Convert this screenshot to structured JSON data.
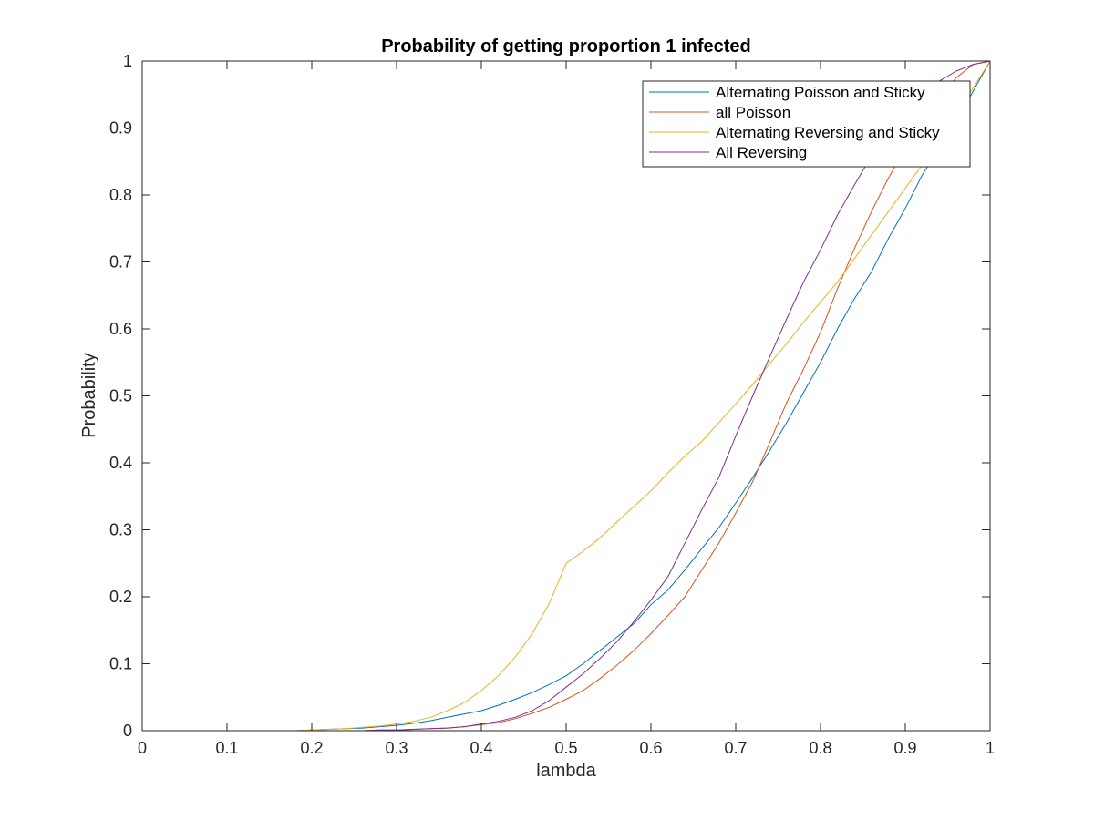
{
  "chart_data": {
    "type": "line",
    "title": "Probability of getting proportion 1 infected",
    "xlabel": "lambda",
    "ylabel": "Probability",
    "xlim": [
      0,
      1
    ],
    "ylim": [
      0,
      1
    ],
    "xticks": [
      0,
      0.1,
      0.2,
      0.3,
      0.4,
      0.5,
      0.6,
      0.7,
      0.8,
      0.9,
      1
    ],
    "xtick_labels": [
      "0",
      "0.1",
      "0.2",
      "0.3",
      "0.4",
      "0.5",
      "0.6",
      "0.7",
      "0.8",
      "0.9",
      "1"
    ],
    "yticks": [
      0,
      0.1,
      0.2,
      0.3,
      0.4,
      0.5,
      0.6,
      0.7,
      0.8,
      0.9,
      1
    ],
    "ytick_labels": [
      "0",
      "0.1",
      "0.2",
      "0.3",
      "0.4",
      "0.5",
      "0.6",
      "0.7",
      "0.8",
      "0.9",
      "1"
    ],
    "grid": false,
    "legend_position": "top-right",
    "x": [
      0,
      0.02,
      0.04,
      0.06,
      0.08,
      0.1,
      0.12,
      0.14,
      0.16,
      0.18,
      0.2,
      0.22,
      0.24,
      0.26,
      0.28,
      0.3,
      0.32,
      0.34,
      0.36,
      0.38,
      0.4,
      0.42,
      0.44,
      0.46,
      0.48,
      0.5,
      0.52,
      0.54,
      0.56,
      0.58,
      0.6,
      0.62,
      0.64,
      0.66,
      0.68,
      0.7,
      0.72,
      0.74,
      0.76,
      0.78,
      0.8,
      0.82,
      0.84,
      0.86,
      0.88,
      0.9,
      0.92,
      0.94,
      0.96,
      0.98,
      1
    ],
    "series": [
      {
        "name": "Alternating Poisson and Sticky",
        "color": "#0072BD",
        "values": [
          0,
          0,
          0,
          0,
          0,
          0,
          0,
          0,
          0,
          0,
          0.001,
          0.002,
          0.003,
          0.004,
          0.006,
          0.008,
          0.011,
          0.015,
          0.02,
          0.025,
          0.03,
          0.038,
          0.047,
          0.057,
          0.069,
          0.082,
          0.1,
          0.12,
          0.14,
          0.16,
          0.188,
          0.21,
          0.24,
          0.272,
          0.303,
          0.34,
          0.378,
          0.418,
          0.46,
          0.505,
          0.55,
          0.6,
          0.645,
          0.685,
          0.735,
          0.78,
          0.83,
          0.87,
          0.91,
          0.955,
          1
        ]
      },
      {
        "name": "all Poisson",
        "color": "#D95319",
        "values": [
          0,
          0,
          0,
          0,
          0,
          0,
          0,
          0,
          0,
          0,
          0,
          0,
          0,
          0,
          0.001,
          0.001,
          0.002,
          0.003,
          0.004,
          0.006,
          0.009,
          0.012,
          0.018,
          0.026,
          0.035,
          0.047,
          0.06,
          0.078,
          0.098,
          0.12,
          0.145,
          0.172,
          0.2,
          0.24,
          0.28,
          0.325,
          0.372,
          0.43,
          0.49,
          0.54,
          0.595,
          0.66,
          0.72,
          0.775,
          0.825,
          0.87,
          0.91,
          0.945,
          0.975,
          0.995,
          1
        ]
      },
      {
        "name": "Alternating Reversing and Sticky",
        "color": "#EDB120",
        "values": [
          0,
          0,
          0,
          0,
          0,
          0,
          0,
          0,
          0,
          0,
          0.001,
          0.002,
          0.003,
          0.005,
          0.007,
          0.01,
          0.014,
          0.02,
          0.03,
          0.042,
          0.06,
          0.082,
          0.11,
          0.145,
          0.19,
          0.25,
          0.268,
          0.288,
          0.312,
          0.335,
          0.358,
          0.385,
          0.41,
          0.432,
          0.46,
          0.488,
          0.517,
          0.548,
          0.578,
          0.61,
          0.64,
          0.67,
          0.705,
          0.74,
          0.775,
          0.81,
          0.845,
          0.88,
          0.92,
          0.96,
          1
        ]
      },
      {
        "name": "All Reversing",
        "color": "#7E2F8E",
        "values": [
          0,
          0,
          0,
          0,
          0,
          0,
          0,
          0,
          0,
          0,
          0,
          0,
          0,
          0,
          0.001,
          0.001,
          0.002,
          0.003,
          0.004,
          0.006,
          0.01,
          0.014,
          0.02,
          0.03,
          0.045,
          0.065,
          0.085,
          0.108,
          0.133,
          0.163,
          0.195,
          0.23,
          0.28,
          0.33,
          0.378,
          0.44,
          0.5,
          0.558,
          0.615,
          0.67,
          0.718,
          0.77,
          0.815,
          0.858,
          0.895,
          0.925,
          0.95,
          0.97,
          0.985,
          0.995,
          1
        ]
      }
    ]
  }
}
